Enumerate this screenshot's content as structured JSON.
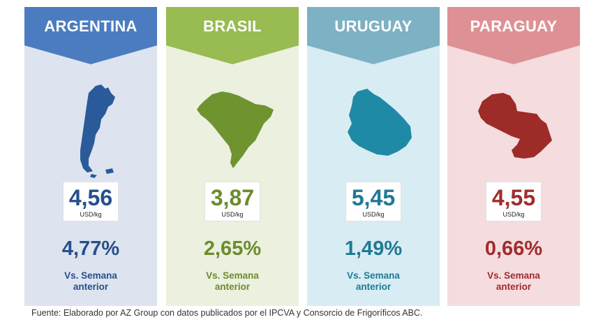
{
  "cards": [
    {
      "country": "ARGENTINA",
      "price": "4,56",
      "unit": "USD/kg",
      "change": "4,77%",
      "vs_line1": "Vs. Semana",
      "vs_line2": "anterior",
      "map_icon": "argentina-map-icon",
      "colors": {
        "bg": "#dde4ef",
        "banner": "#4a7cbf",
        "text": "#264f8c",
        "map": "#2a5a9a"
      }
    },
    {
      "country": "BRASIL",
      "price": "3,87",
      "unit": "USD/kg",
      "change": "2,65%",
      "vs_line1": "Vs. Semana",
      "vs_line2": "anterior",
      "map_icon": "brasil-map-icon",
      "colors": {
        "bg": "#ebf0df",
        "banner": "#98bb52",
        "text": "#6b8c2e",
        "map": "#6f932f"
      }
    },
    {
      "country": "URUGUAY",
      "price": "5,45",
      "unit": "USD/kg",
      "change": "1,49%",
      "vs_line1": "Vs. Semana",
      "vs_line2": "anterior",
      "map_icon": "uruguay-map-icon",
      "colors": {
        "bg": "#d8ecf3",
        "banner": "#7db1c4",
        "text": "#1f7a95",
        "map": "#1f8aa5"
      }
    },
    {
      "country": "PARAGUAY",
      "price": "4,55",
      "unit": "USD/kg",
      "change": "0,66%",
      "vs_line1": "Vs. Semana",
      "vs_line2": "anterior",
      "map_icon": "paraguay-map-icon",
      "colors": {
        "bg": "#f4dcdf",
        "banner": "#de9195",
        "text": "#a12c2c",
        "map": "#9d2b27"
      }
    }
  ],
  "source": "Fuente: Elaborado por AZ Group con datos publicados por el IPCVA y Consorcio de Frigoríficos ABC."
}
